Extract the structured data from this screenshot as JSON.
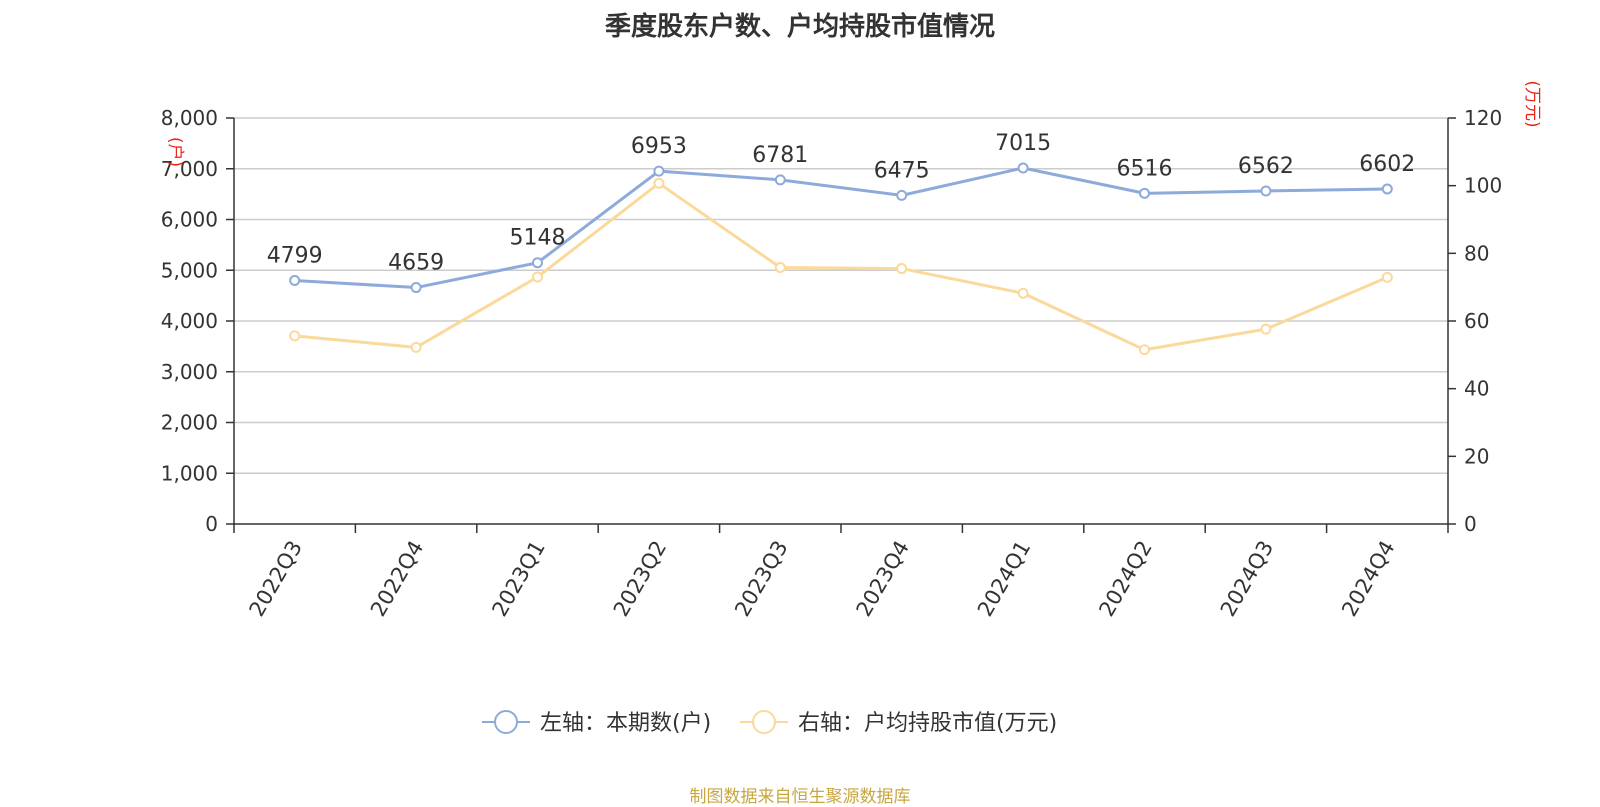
{
  "chart_data": {
    "type": "line",
    "title": "季度股东户数、户均持股市值情况",
    "categories": [
      "2022Q3",
      "2022Q4",
      "2023Q1",
      "2023Q2",
      "2023Q3",
      "2023Q4",
      "2024Q1",
      "2024Q2",
      "2024Q3",
      "2024Q4"
    ],
    "y_left": {
      "label": "(户)",
      "range": [
        0,
        8000
      ],
      "ticks": [
        0,
        1000,
        2000,
        3000,
        4000,
        5000,
        6000,
        7000,
        8000
      ],
      "tick_labels": [
        "0",
        "1,000",
        "2,000",
        "3,000",
        "4,000",
        "5,000",
        "6,000",
        "7,000",
        "8,000"
      ]
    },
    "y_right": {
      "label": "(万元)",
      "range": [
        0,
        120
      ],
      "ticks": [
        0,
        20,
        40,
        60,
        80,
        100,
        120
      ],
      "tick_labels": [
        "0",
        "20",
        "40",
        "60",
        "80",
        "100",
        "120"
      ]
    },
    "series": [
      {
        "name": "左轴：本期数(户)",
        "axis": "left",
        "color": "#8eaadb",
        "values": [
          4799,
          4659,
          5148,
          6953,
          6781,
          6475,
          7015,
          6516,
          6562,
          6602
        ],
        "data_labels": [
          "4799",
          "4659",
          "5148",
          "6953",
          "6781",
          "6475",
          "7015",
          "6516",
          "6562",
          "6602"
        ]
      },
      {
        "name": "右轴：户均持股市值(万元)",
        "axis": "right",
        "color": "#fbd99a",
        "values": [
          55.6,
          52.2,
          73.0,
          100.7,
          75.8,
          75.5,
          68.2,
          51.5,
          57.6,
          72.9
        ]
      }
    ],
    "grid": true,
    "legend_position": "bottom-center"
  },
  "source_note": "制图数据来自恒生聚源数据库"
}
